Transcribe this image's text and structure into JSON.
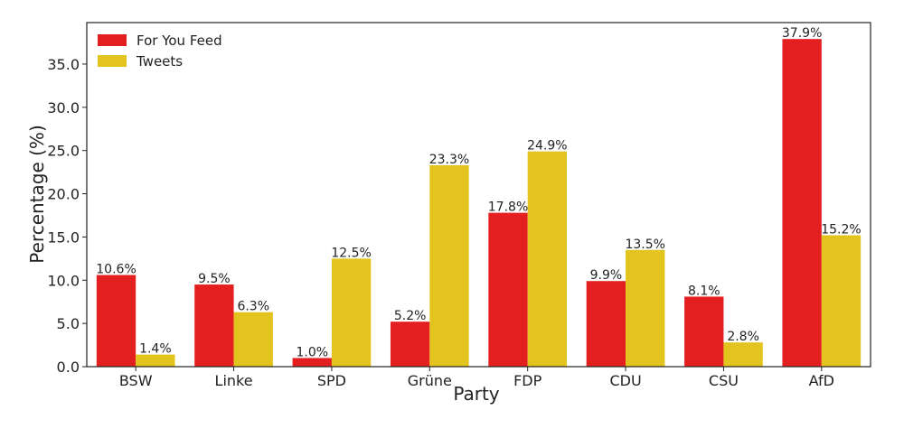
{
  "chart_data": {
    "type": "bar",
    "title": "",
    "xlabel": "Party",
    "ylabel": "Percentage (%)",
    "categories": [
      "BSW",
      "Linke",
      "SPD",
      "Grüne",
      "FDP",
      "CDU",
      "CSU",
      "AfD"
    ],
    "series": [
      {
        "name": "For You Feed",
        "color": "#e41f1f",
        "values": [
          10.6,
          9.5,
          1.0,
          5.2,
          17.8,
          9.9,
          8.1,
          37.9
        ],
        "labels": [
          "10.6%",
          "9.5%",
          "1.0%",
          "5.2%",
          "17.8%",
          "9.9%",
          "8.1%",
          "37.9%"
        ]
      },
      {
        "name": "Tweets",
        "color": "#e3c41f",
        "values": [
          1.4,
          6.3,
          12.5,
          23.3,
          24.9,
          13.5,
          2.8,
          15.2
        ],
        "labels": [
          "1.4%",
          "6.3%",
          "12.5%",
          "23.3%",
          "24.9%",
          "13.5%",
          "2.8%",
          "15.2%"
        ]
      }
    ],
    "ylim": [
      0,
      39.8
    ],
    "yticks": [
      0.0,
      5.0,
      10.0,
      15.0,
      20.0,
      25.0,
      30.0,
      35.0
    ],
    "ytick_labels": [
      "0.0",
      "5.0",
      "10.0",
      "15.0",
      "20.0",
      "25.0",
      "30.0",
      "35.0"
    ],
    "grid": false,
    "legend_position": "top-left"
  }
}
